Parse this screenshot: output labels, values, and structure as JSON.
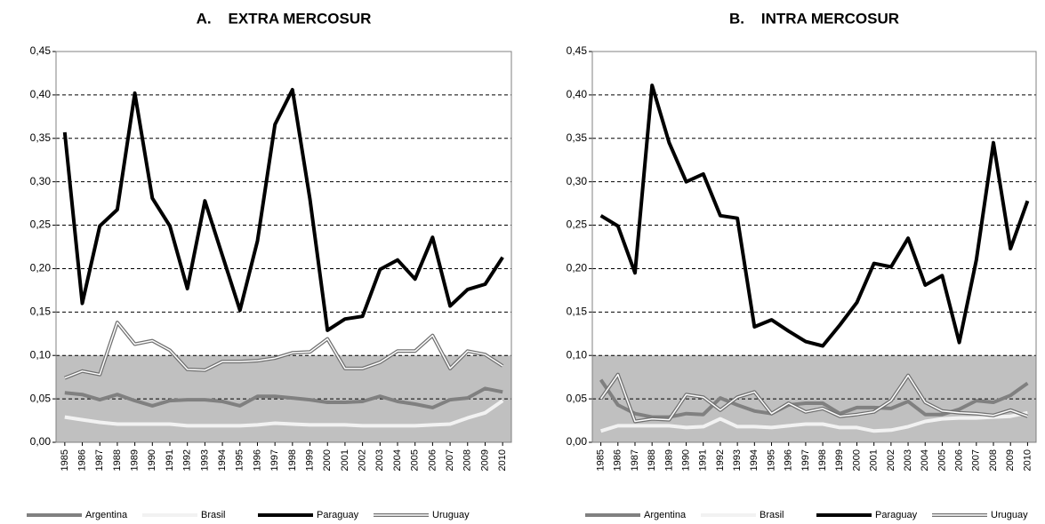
{
  "chart_data": [
    {
      "type": "line",
      "title": "A.    EXTRA MERCOSUR",
      "categories": [
        "1985",
        "1986",
        "1987",
        "1988",
        "1989",
        "1990",
        "1991",
        "1992",
        "1993",
        "1994",
        "1995",
        "1996",
        "1997",
        "1998",
        "1999",
        "2000",
        "2001",
        "2002",
        "2003",
        "2004",
        "2005",
        "2006",
        "2007",
        "2008",
        "2009",
        "2010"
      ],
      "series": [
        {
          "name": "Argentina",
          "color": "#808080",
          "line_style": "solid",
          "values": [
            0.057,
            0.055,
            0.049,
            0.055,
            0.048,
            0.042,
            0.048,
            0.049,
            0.049,
            0.047,
            0.042,
            0.053,
            0.053,
            0.051,
            0.049,
            0.046,
            0.046,
            0.047,
            0.053,
            0.047,
            0.044,
            0.04,
            0.049,
            0.051,
            0.062,
            0.058
          ]
        },
        {
          "name": "Brasil",
          "color": "#f2f2f2",
          "line_style": "solid",
          "values": [
            0.029,
            0.026,
            0.023,
            0.021,
            0.021,
            0.021,
            0.021,
            0.019,
            0.019,
            0.019,
            0.019,
            0.02,
            0.022,
            0.021,
            0.02,
            0.02,
            0.02,
            0.019,
            0.019,
            0.019,
            0.019,
            0.02,
            0.021,
            0.028,
            0.034,
            0.048
          ]
        },
        {
          "name": "Paraguay",
          "color": "#000000",
          "line_style": "solid",
          "values": [
            0.357,
            0.16,
            0.249,
            0.268,
            0.402,
            0.281,
            0.249,
            0.177,
            0.278,
            0.215,
            0.152,
            0.232,
            0.366,
            0.406,
            0.28,
            0.129,
            0.142,
            0.145,
            0.199,
            0.21,
            0.188,
            0.236,
            0.157,
            0.176,
            0.182,
            0.213
          ]
        },
        {
          "name": "Uruguay",
          "color": "#707070",
          "line_style": "double",
          "values": [
            0.074,
            0.082,
            0.078,
            0.138,
            0.113,
            0.117,
            0.106,
            0.084,
            0.083,
            0.093,
            0.093,
            0.094,
            0.097,
            0.103,
            0.104,
            0.119,
            0.085,
            0.085,
            0.092,
            0.105,
            0.105,
            0.123,
            0.085,
            0.105,
            0.101,
            0.088
          ]
        }
      ],
      "ylim": [
        0,
        0.45
      ],
      "yticks": [
        {
          "value": 0,
          "label": "0,00"
        },
        {
          "value": 0.05,
          "label": "0,05"
        },
        {
          "value": 0.1,
          "label": "0,10"
        },
        {
          "value": 0.15,
          "label": "0,15"
        },
        {
          "value": 0.2,
          "label": "0,20"
        },
        {
          "value": 0.25,
          "label": "0,25"
        },
        {
          "value": 0.3,
          "label": "0,30"
        },
        {
          "value": 0.35,
          "label": "0,35"
        },
        {
          "value": 0.4,
          "label": "0,40"
        },
        {
          "value": 0.45,
          "label": "0,45"
        }
      ],
      "grid": true,
      "shaded_band": {
        "range": [
          0,
          0.1
        ],
        "color": "#c0c0c0"
      },
      "legend": "bottom"
    },
    {
      "type": "line",
      "title": "B.    INTRA MERCOSUR",
      "categories": [
        "1985",
        "1986",
        "1987",
        "1988",
        "1989",
        "1990",
        "1991",
        "1992",
        "1993",
        "1994",
        "1995",
        "1996",
        "1997",
        "1998",
        "1999",
        "2000",
        "2001",
        "2002",
        "2003",
        "2004",
        "2005",
        "2006",
        "2007",
        "2008",
        "2009",
        "2010"
      ],
      "series": [
        {
          "name": "Argentina",
          "color": "#808080",
          "line_style": "solid",
          "values": [
            0.072,
            0.043,
            0.033,
            0.029,
            0.029,
            0.033,
            0.032,
            0.051,
            0.043,
            0.036,
            0.033,
            0.043,
            0.045,
            0.045,
            0.033,
            0.04,
            0.04,
            0.039,
            0.047,
            0.032,
            0.032,
            0.038,
            0.048,
            0.046,
            0.054,
            0.068
          ]
        },
        {
          "name": "Brasil",
          "color": "#f2f2f2",
          "line_style": "solid",
          "values": [
            0.013,
            0.019,
            0.019,
            0.019,
            0.019,
            0.017,
            0.018,
            0.027,
            0.018,
            0.018,
            0.017,
            0.019,
            0.021,
            0.021,
            0.017,
            0.017,
            0.013,
            0.014,
            0.018,
            0.024,
            0.027,
            0.028,
            0.028,
            0.029,
            0.03,
            0.034
          ]
        },
        {
          "name": "Paraguay",
          "color": "#000000",
          "line_style": "solid",
          "values": [
            0.261,
            0.249,
            0.195,
            0.411,
            0.345,
            0.3,
            0.309,
            0.261,
            0.258,
            0.133,
            0.141,
            0.128,
            0.116,
            0.111,
            0.135,
            0.161,
            0.206,
            0.202,
            0.235,
            0.181,
            0.192,
            0.115,
            0.21,
            0.345,
            0.223,
            0.278
          ]
        },
        {
          "name": "Uruguay",
          "color": "#707070",
          "line_style": "double",
          "values": [
            0.05,
            0.078,
            0.024,
            0.027,
            0.026,
            0.055,
            0.052,
            0.037,
            0.052,
            0.058,
            0.033,
            0.045,
            0.035,
            0.039,
            0.03,
            0.032,
            0.035,
            0.048,
            0.077,
            0.046,
            0.036,
            0.034,
            0.033,
            0.031,
            0.037,
            0.03
          ]
        }
      ],
      "ylim": [
        0,
        0.45
      ],
      "yticks": [
        {
          "value": 0,
          "label": "0,00"
        },
        {
          "value": 0.05,
          "label": "0,05"
        },
        {
          "value": 0.1,
          "label": "0,10"
        },
        {
          "value": 0.15,
          "label": "0,15"
        },
        {
          "value": 0.2,
          "label": "0,20"
        },
        {
          "value": 0.25,
          "label": "0,25"
        },
        {
          "value": 0.3,
          "label": "0,30"
        },
        {
          "value": 0.35,
          "label": "0,35"
        },
        {
          "value": 0.4,
          "label": "0,40"
        },
        {
          "value": 0.45,
          "label": "0,45"
        }
      ],
      "grid": true,
      "shaded_band": {
        "range": [
          0,
          0.1
        ],
        "color": "#c0c0c0"
      },
      "legend": "bottom"
    }
  ]
}
